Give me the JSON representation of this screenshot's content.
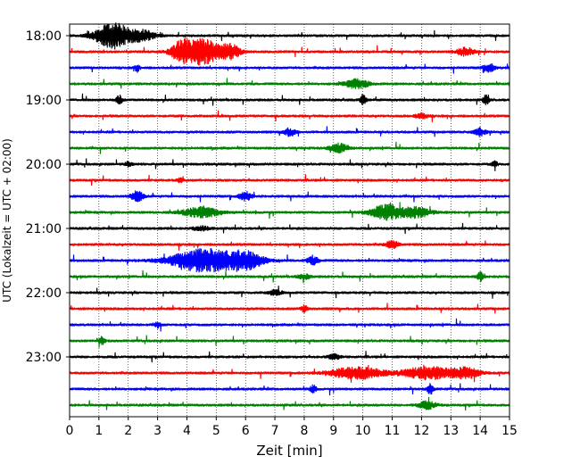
{
  "chart_data": {
    "type": "line",
    "title": "",
    "xlabel": "Zeit  [min]",
    "ylabel": "UTC (Lokalzeit = UTC + 02:00)",
    "xlim": [
      0,
      15
    ],
    "x_ticks": [
      "0",
      "1",
      "2",
      "3",
      "4",
      "5",
      "6",
      "7",
      "8",
      "9",
      "10",
      "11",
      "12",
      "13",
      "14",
      "15"
    ],
    "y_ticks": [
      "18:00",
      "19:00",
      "20:00",
      "21:00",
      "22:00",
      "23:00"
    ],
    "grid": "vertical dotted lines at each minute",
    "trace_interval_minutes": 15,
    "colors": [
      "#000000",
      "#ff0000",
      "#0000ff",
      "#008000"
    ],
    "traces": [
      {
        "start": "18:00",
        "events": [
          {
            "t": 1.5,
            "amp": 1.0,
            "w": 0.6
          },
          {
            "t": 2.5,
            "amp": 0.4,
            "w": 0.4
          }
        ]
      },
      {
        "start": "18:15",
        "events": [
          {
            "t": 4.5,
            "amp": 1.0,
            "w": 0.7
          },
          {
            "t": 3.8,
            "amp": 0.6,
            "w": 0.3
          },
          {
            "t": 5.5,
            "amp": 0.5,
            "w": 0.3
          },
          {
            "t": 13.5,
            "amp": 0.3,
            "w": 0.3
          }
        ]
      },
      {
        "start": "18:30",
        "events": [
          {
            "t": 2.3,
            "amp": 0.25,
            "w": 0.1
          },
          {
            "t": 14.3,
            "amp": 0.3,
            "w": 0.2
          }
        ]
      },
      {
        "start": "18:45",
        "events": [
          {
            "t": 9.8,
            "amp": 0.35,
            "w": 0.4
          }
        ]
      },
      {
        "start": "19:00",
        "events": [
          {
            "t": 1.7,
            "amp": 0.35,
            "w": 0.1
          },
          {
            "t": 10.0,
            "amp": 0.35,
            "w": 0.1
          },
          {
            "t": 14.2,
            "amp": 0.35,
            "w": 0.1
          }
        ]
      },
      {
        "start": "19:15",
        "events": [
          {
            "t": 12.0,
            "amp": 0.2,
            "w": 0.2
          }
        ]
      },
      {
        "start": "19:30",
        "events": [
          {
            "t": 7.5,
            "amp": 0.3,
            "w": 0.2
          },
          {
            "t": 14.0,
            "amp": 0.3,
            "w": 0.2
          }
        ]
      },
      {
        "start": "19:45",
        "events": [
          {
            "t": 9.2,
            "amp": 0.35,
            "w": 0.3
          }
        ]
      },
      {
        "start": "20:00",
        "events": [
          {
            "t": 2.0,
            "amp": 0.2,
            "w": 0.1
          },
          {
            "t": 14.5,
            "amp": 0.2,
            "w": 0.1
          }
        ]
      },
      {
        "start": "20:15",
        "events": [
          {
            "t": 3.8,
            "amp": 0.2,
            "w": 0.1
          }
        ]
      },
      {
        "start": "20:30",
        "events": [
          {
            "t": 2.3,
            "amp": 0.4,
            "w": 0.2
          },
          {
            "t": 6.0,
            "amp": 0.35,
            "w": 0.2
          }
        ]
      },
      {
        "start": "20:45",
        "events": [
          {
            "t": 4.5,
            "amp": 0.4,
            "w": 0.6
          },
          {
            "t": 10.8,
            "amp": 0.6,
            "w": 0.5
          },
          {
            "t": 11.8,
            "amp": 0.4,
            "w": 0.5
          }
        ]
      },
      {
        "start": "21:00",
        "events": [
          {
            "t": 4.5,
            "amp": 0.15,
            "w": 0.3
          }
        ]
      },
      {
        "start": "21:15",
        "events": [
          {
            "t": 11.0,
            "amp": 0.3,
            "w": 0.2
          }
        ]
      },
      {
        "start": "21:30",
        "events": [
          {
            "t": 4.6,
            "amp": 0.9,
            "w": 1.1
          },
          {
            "t": 6.0,
            "amp": 0.6,
            "w": 0.6
          },
          {
            "t": 8.3,
            "amp": 0.3,
            "w": 0.2
          }
        ]
      },
      {
        "start": "21:45",
        "events": [
          {
            "t": 8.0,
            "amp": 0.2,
            "w": 0.2
          },
          {
            "t": 14.0,
            "amp": 0.35,
            "w": 0.1
          }
        ]
      },
      {
        "start": "22:00",
        "events": [
          {
            "t": 7.0,
            "amp": 0.2,
            "w": 0.2
          }
        ]
      },
      {
        "start": "22:15",
        "events": [
          {
            "t": 8.0,
            "amp": 0.3,
            "w": 0.1
          }
        ]
      },
      {
        "start": "22:30",
        "events": [
          {
            "t": 3.0,
            "amp": 0.2,
            "w": 0.1
          }
        ]
      },
      {
        "start": "22:45",
        "events": [
          {
            "t": 1.1,
            "amp": 0.3,
            "w": 0.1
          }
        ]
      },
      {
        "start": "23:00",
        "events": [
          {
            "t": 9.0,
            "amp": 0.2,
            "w": 0.2
          }
        ]
      },
      {
        "start": "23:15",
        "events": [
          {
            "t": 9.8,
            "amp": 0.45,
            "w": 0.9
          },
          {
            "t": 12.2,
            "amp": 0.5,
            "w": 0.8
          },
          {
            "t": 13.5,
            "amp": 0.4,
            "w": 0.5
          }
        ]
      },
      {
        "start": "23:30",
        "events": [
          {
            "t": 12.3,
            "amp": 0.4,
            "w": 0.1
          },
          {
            "t": 8.3,
            "amp": 0.3,
            "w": 0.1
          }
        ]
      },
      {
        "start": "23:45",
        "events": [
          {
            "t": 12.2,
            "amp": 0.3,
            "w": 0.3
          }
        ]
      }
    ]
  }
}
